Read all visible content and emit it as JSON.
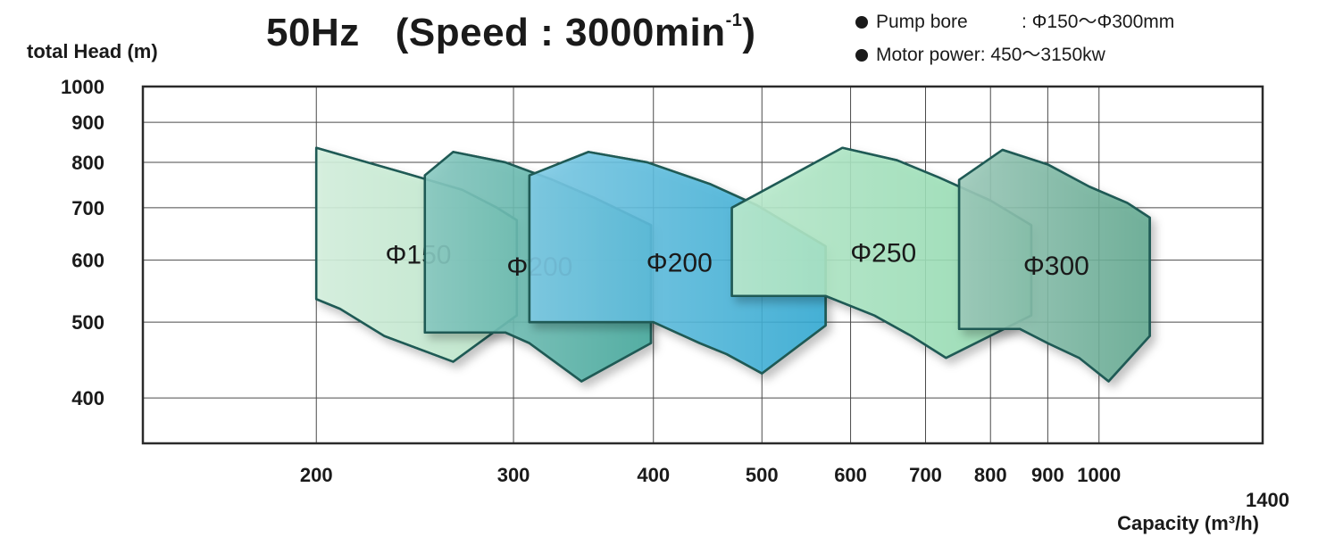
{
  "title": {
    "frequency": "50Hz",
    "speed_prefix": "(Speed : 3000min",
    "speed_sup": "-1",
    "speed_suffix": ")"
  },
  "specs": [
    {
      "label": "Pump bore",
      "value": ": Φ150〜Φ300mm"
    },
    {
      "label": "Motor power",
      "value": ": 450〜3150kw"
    }
  ],
  "chart_data": {
    "type": "area",
    "scale": "log-log",
    "ylabel": "total Head (m)",
    "xlabel": "Capacity (m³/h)",
    "xlim": [
      140,
      1400
    ],
    "ylim": [
      350,
      1000
    ],
    "x_ticks": [
      200,
      300,
      400,
      500,
      600,
      700,
      800,
      900,
      1000,
      1400
    ],
    "x_tick_labels": [
      "200",
      "300",
      "400",
      "500",
      "600",
      "700",
      "800",
      "900",
      "1000",
      "1400"
    ],
    "y_ticks": [
      400,
      500,
      600,
      700,
      800,
      900,
      1000
    ],
    "y_tick_labels": [
      "400",
      "500",
      "600",
      "700",
      "800",
      "900",
      "1000"
    ],
    "grid": true,
    "series": [
      {
        "name": "Φ150",
        "color": "#b8e6c8",
        "points": [
          [
            200,
            835
          ],
          [
            240,
            775
          ],
          [
            270,
            738
          ],
          [
            290,
            700
          ],
          [
            302,
            675
          ],
          [
            302,
            510
          ],
          [
            265,
            445
          ],
          [
            230,
            480
          ],
          [
            210,
            520
          ],
          [
            200,
            535
          ]
        ]
      },
      {
        "name": "Φ200",
        "color": "#3fa79a",
        "points": [
          [
            250,
            770
          ],
          [
            265,
            825
          ],
          [
            295,
            800
          ],
          [
            325,
            760
          ],
          [
            355,
            720
          ],
          [
            398,
            665
          ],
          [
            398,
            470
          ],
          [
            345,
            420
          ],
          [
            310,
            470
          ],
          [
            295,
            485
          ],
          [
            250,
            485
          ]
        ]
      },
      {
        "name": "Φ200",
        "color": "#2fa9d4",
        "points": [
          [
            310,
            770
          ],
          [
            350,
            825
          ],
          [
            395,
            800
          ],
          [
            450,
            750
          ],
          [
            495,
            705
          ],
          [
            570,
            625
          ],
          [
            570,
            495
          ],
          [
            500,
            430
          ],
          [
            465,
            455
          ],
          [
            440,
            470
          ],
          [
            400,
            500
          ],
          [
            310,
            500
          ]
        ]
      },
      {
        "name": "Φ250",
        "color": "#8fdcae",
        "points": [
          [
            470,
            700
          ],
          [
            590,
            835
          ],
          [
            660,
            805
          ],
          [
            720,
            765
          ],
          [
            800,
            715
          ],
          [
            870,
            665
          ],
          [
            870,
            510
          ],
          [
            730,
            450
          ],
          [
            680,
            480
          ],
          [
            630,
            510
          ],
          [
            570,
            540
          ],
          [
            470,
            540
          ]
        ]
      },
      {
        "name": "Φ300",
        "color": "#5fa88e",
        "points": [
          [
            750,
            760
          ],
          [
            820,
            830
          ],
          [
            900,
            795
          ],
          [
            980,
            745
          ],
          [
            1060,
            710
          ],
          [
            1110,
            680
          ],
          [
            1110,
            480
          ],
          [
            1020,
            420
          ],
          [
            960,
            450
          ],
          [
            900,
            470
          ],
          [
            850,
            490
          ],
          [
            750,
            490
          ]
        ]
      }
    ]
  }
}
